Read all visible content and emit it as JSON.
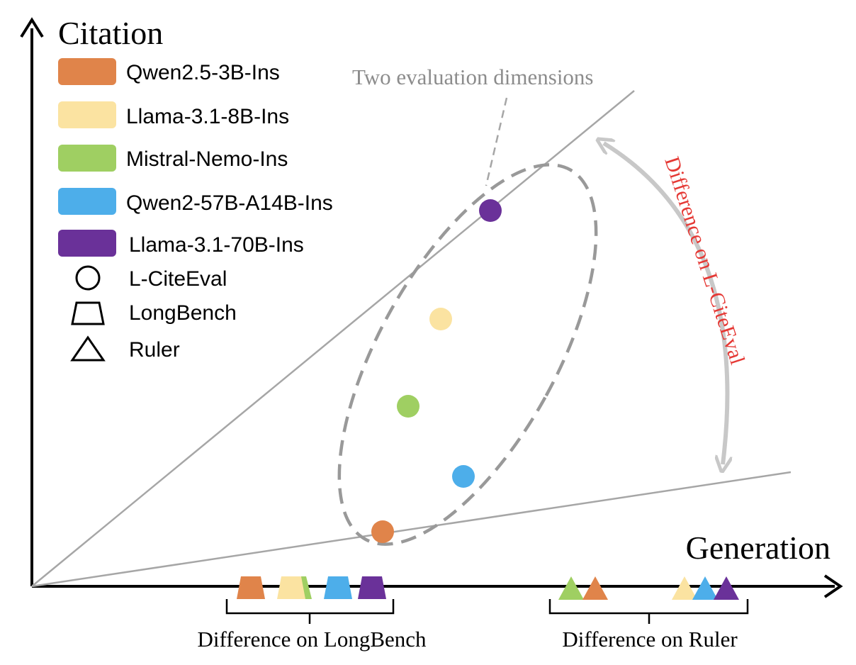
{
  "axes": {
    "y_label": "Citation",
    "x_label": "Generation"
  },
  "legend": {
    "models": [
      {
        "label": "Qwen2.5-3B-Ins",
        "color": "#E0844A"
      },
      {
        "label": "Llama-3.1-8B-Ins",
        "color": "#FBE3A1"
      },
      {
        "label": "Mistral-Nemo-Ins",
        "color": "#9FCF62"
      },
      {
        "label": "Qwen2-57B-A14B-Ins",
        "color": "#4DAEEA"
      },
      {
        "label": "Llama-3.1-70B-Ins",
        "color": "#6A3199"
      }
    ],
    "benchmarks": [
      {
        "label": "L-CiteEval",
        "icon": "circle-icon"
      },
      {
        "label": "LongBench",
        "icon": "trapezoid-icon"
      },
      {
        "label": "Ruler",
        "icon": "triangle-icon"
      }
    ]
  },
  "annotations": {
    "two_dimensions": "Two evaluation dimensions",
    "diff_citeeval": "Difference on L-CiteEval",
    "diff_longbench": "Difference on LongBench",
    "diff_ruler": "Difference on Ruler"
  },
  "colors": {
    "axis": "#000000",
    "guide": "#A6A6A6",
    "ellipse": "#999999",
    "curve_arrow": "#C8C8C8",
    "citeeval_label": "#E53935"
  }
}
